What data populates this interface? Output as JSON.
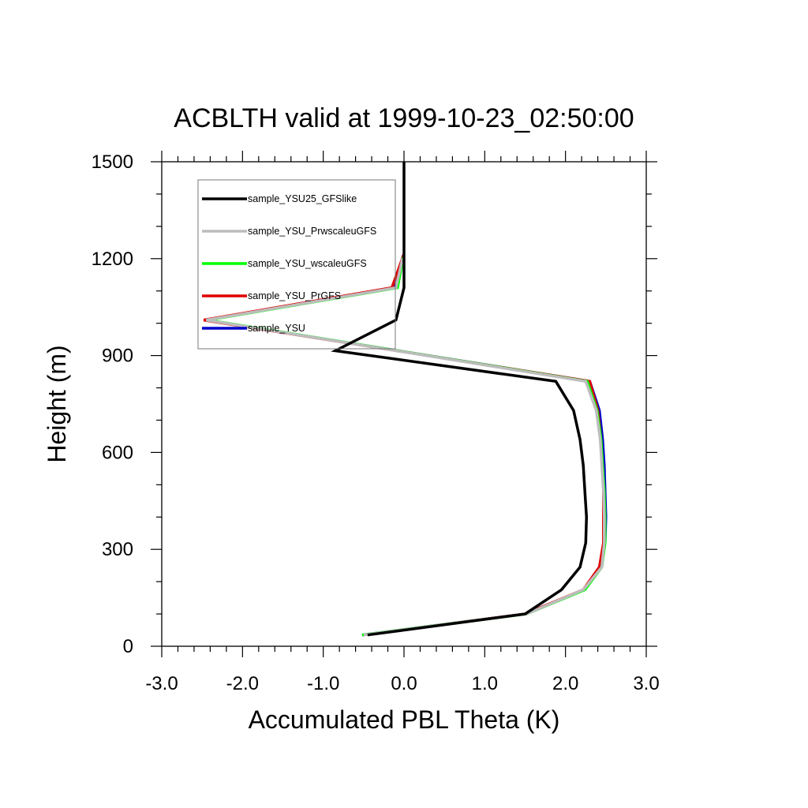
{
  "chart_data": {
    "type": "line",
    "title": "ACBLTH valid at 1999-10-23_02:50:00",
    "xlabel": "Accumulated PBL Theta (K)",
    "ylabel": "Height (m)",
    "xlim": [
      -3.0,
      3.0
    ],
    "ylim": [
      0,
      1500
    ],
    "x_ticks": [
      -3.0,
      -2.0,
      -1.0,
      0.0,
      1.0,
      2.0,
      3.0
    ],
    "x_tick_labels": [
      "-3.0",
      "-2.0",
      "-1.0",
      "0.0",
      "1.0",
      "2.0",
      "3.0"
    ],
    "y_ticks": [
      0,
      300,
      600,
      900,
      1200,
      1500
    ],
    "y_tick_labels": [
      "0",
      "300",
      "600",
      "900",
      "1200",
      "1500"
    ],
    "grid": false,
    "legend_position": "top-left",
    "series": [
      {
        "name": "sample_YSU25_GFSlike",
        "color": "#000000",
        "points": [
          [
            -0.45,
            35
          ],
          [
            1.5,
            100
          ],
          [
            1.95,
            175
          ],
          [
            2.18,
            245
          ],
          [
            2.25,
            320
          ],
          [
            2.26,
            400
          ],
          [
            2.24,
            480
          ],
          [
            2.22,
            560
          ],
          [
            2.18,
            640
          ],
          [
            2.1,
            730
          ],
          [
            1.88,
            820
          ],
          [
            -0.85,
            915
          ],
          [
            -0.1,
            1010
          ],
          [
            0.0,
            1110
          ],
          [
            0.0,
            1500
          ]
        ]
      },
      {
        "name": "sample_YSU_PrwscaleuGFS",
        "color": "#bdbdbd",
        "points": [
          [
            -0.5,
            35
          ],
          [
            1.52,
            100
          ],
          [
            2.22,
            175
          ],
          [
            2.45,
            245
          ],
          [
            2.48,
            320
          ],
          [
            2.48,
            400
          ],
          [
            2.47,
            480
          ],
          [
            2.45,
            560
          ],
          [
            2.43,
            640
          ],
          [
            2.38,
            730
          ],
          [
            2.25,
            820
          ],
          [
            -2.45,
            1010
          ],
          [
            -0.1,
            1110
          ],
          [
            -0.02,
            1200
          ]
        ]
      },
      {
        "name": "sample_YSU_wscaleuGFS",
        "color": "#00ff00",
        "points": [
          [
            -0.52,
            35
          ],
          [
            1.52,
            100
          ],
          [
            2.24,
            175
          ],
          [
            2.45,
            245
          ],
          [
            2.49,
            320
          ],
          [
            2.49,
            400
          ],
          [
            2.48,
            480
          ],
          [
            2.46,
            560
          ],
          [
            2.44,
            640
          ],
          [
            2.39,
            730
          ],
          [
            2.27,
            820
          ],
          [
            -2.43,
            1010
          ],
          [
            -0.08,
            1110
          ],
          [
            -0.01,
            1205
          ]
        ]
      },
      {
        "name": "sample_YSU_PrGFS",
        "color": "#e00000",
        "points": [
          [
            -0.5,
            35
          ],
          [
            1.5,
            100
          ],
          [
            2.22,
            175
          ],
          [
            2.42,
            245
          ],
          [
            2.47,
            320
          ],
          [
            2.47,
            400
          ],
          [
            2.47,
            480
          ],
          [
            2.46,
            560
          ],
          [
            2.44,
            640
          ],
          [
            2.4,
            730
          ],
          [
            2.3,
            820
          ],
          [
            -2.48,
            1010
          ],
          [
            -0.15,
            1110
          ],
          [
            0.0,
            1215
          ]
        ]
      },
      {
        "name": "sample_YSU",
        "color": "#0000cc",
        "points": [
          [
            -0.52,
            35
          ],
          [
            1.5,
            100
          ],
          [
            2.23,
            175
          ],
          [
            2.44,
            245
          ],
          [
            2.49,
            320
          ],
          [
            2.5,
            400
          ],
          [
            2.49,
            480
          ],
          [
            2.48,
            560
          ],
          [
            2.46,
            640
          ],
          [
            2.42,
            730
          ],
          [
            2.3,
            820
          ],
          [
            -2.46,
            1010
          ],
          [
            -0.12,
            1110
          ],
          [
            -0.01,
            1210
          ]
        ]
      }
    ]
  }
}
